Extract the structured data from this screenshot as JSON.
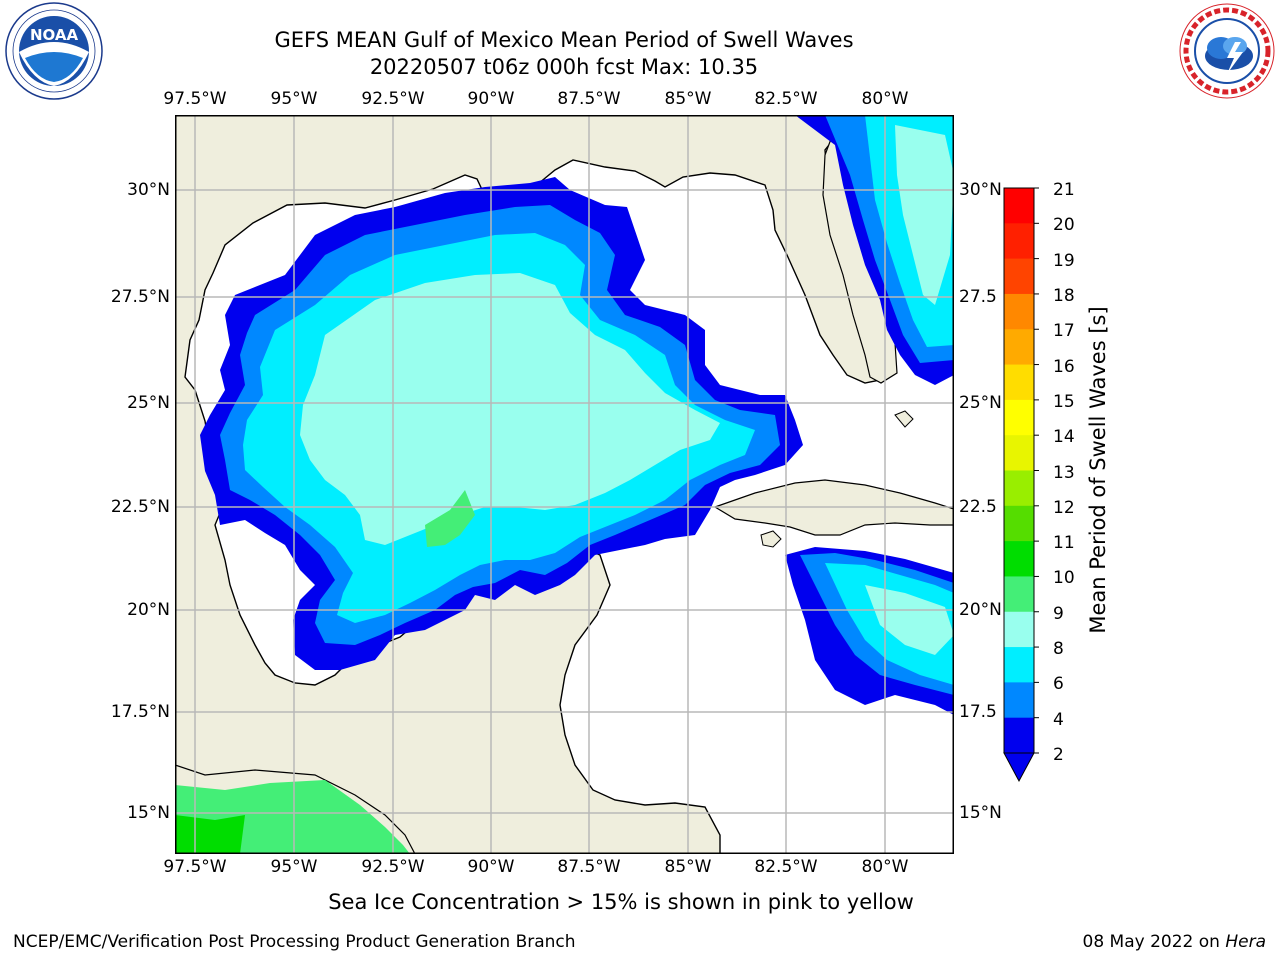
{
  "title": {
    "line1": "GEFS MEAN Gulf of Mexico Mean Period of Swell Waves",
    "line2": "20220507 t06z 000h fcst   Max: 10.35"
  },
  "logos": {
    "left": {
      "name": "noaa-logo",
      "text": "NOAA",
      "ring_text": "NATIONAL OCEANIC AND ATMOSPHERIC ADMINISTRATION · U.S. DEPARTMENT OF COMMERCE"
    },
    "right": {
      "name": "nws-logo",
      "ring_text": "NATIONAL WEATHER SERVICE"
    }
  },
  "axes": {
    "lon_ticks": [
      "97.5°W",
      "95°W",
      "92.5°W",
      "90°W",
      "87.5°W",
      "85°W",
      "82.5°W",
      "80°W"
    ],
    "lat_ticks_left": [
      "30°N",
      "27.5°N",
      "25°N",
      "22.5°N",
      "20°N",
      "17.5°N",
      "15°N"
    ],
    "lat_ticks_right": [
      "30°N",
      "27.5",
      "25°N",
      "22.5",
      "20°N",
      "17.5",
      "15°N"
    ]
  },
  "colorbar": {
    "title": "Mean Period of Swell Waves [s]",
    "labels": [
      "21",
      "20",
      "19",
      "18",
      "17",
      "16",
      "15",
      "14",
      "13",
      "12",
      "11",
      "10",
      "9",
      "8",
      "6",
      "4",
      "2"
    ],
    "colors": [
      "#ff0000",
      "#ff2000",
      "#ff4400",
      "#ff6600",
      "#ff8800",
      "#ffaa00",
      "#ffdd00",
      "#ffff00",
      "#e8f500",
      "#ccff00",
      "#99ee00",
      "#55dd00",
      "#00dd00",
      "#44ee77",
      "#99ffee",
      "#55ffff",
      "#00eeff",
      "#0088ff",
      "#0000ee"
    ],
    "extend_color": "#0000ee"
  },
  "map": {
    "land_color": "#efeedd",
    "water_color": "#ffffff",
    "grid_color": "#b8b8b8"
  },
  "footer": {
    "note": "Sea Ice Concentration > 15% is shown in pink to yellow",
    "credit": "NCEP/EMC/Verification Post Processing Product Generation Branch",
    "date": "08 May 2022 on",
    "host": "Hera"
  }
}
